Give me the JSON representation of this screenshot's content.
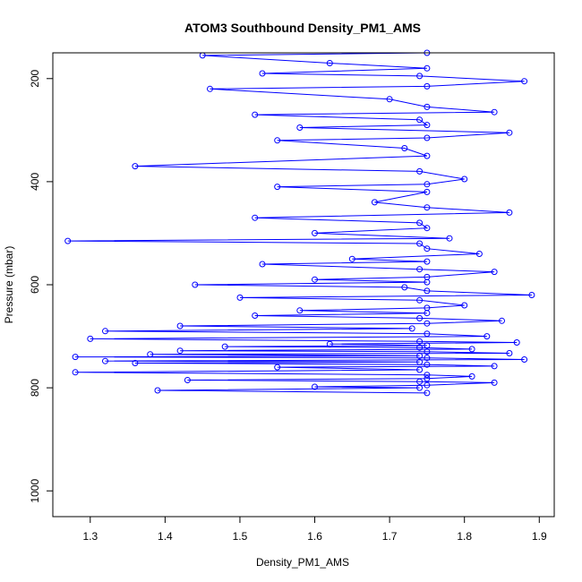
{
  "chart_data": {
    "type": "line",
    "title": "ATOM3 Southbound Density_PM1_AMS",
    "xlabel": "Density_PM1_AMS",
    "ylabel": "Pressure (mbar)",
    "xlim": [
      1.25,
      1.92
    ],
    "ylim": [
      1050,
      150
    ],
    "y_reversed": true,
    "x_ticks": [
      1.3,
      1.4,
      1.5,
      1.6,
      1.7,
      1.8,
      1.9
    ],
    "x_tick_labels": [
      "1.3",
      "1.4",
      "1.5",
      "1.6",
      "1.7",
      "1.8",
      "1.9"
    ],
    "y_ticks": [
      200,
      400,
      600,
      800,
      1000
    ],
    "y_tick_labels": [
      "200",
      "400",
      "600",
      "800",
      "1000"
    ],
    "grid": false,
    "legend": "none",
    "series": [
      {
        "color": "#0000ff",
        "marker": "open-circle",
        "x": [
          1.75,
          1.45,
          1.62,
          1.75,
          1.53,
          1.74,
          1.88,
          1.75,
          1.46,
          1.7,
          1.75,
          1.84,
          1.52,
          1.74,
          1.75,
          1.58,
          1.86,
          1.75,
          1.55,
          1.72,
          1.75,
          1.36,
          1.74,
          1.8,
          1.75,
          1.55,
          1.75,
          1.68,
          1.75,
          1.86,
          1.52,
          1.74,
          1.75,
          1.6,
          1.78,
          1.27,
          1.74,
          1.75,
          1.82,
          1.65,
          1.75,
          1.53,
          1.74,
          1.84,
          1.75,
          1.6,
          1.75,
          1.44,
          1.72,
          1.75,
          1.89,
          1.5,
          1.74,
          1.8,
          1.75,
          1.58,
          1.75,
          1.52,
          1.74,
          1.85,
          1.75,
          1.42,
          1.73,
          1.32,
          1.75,
          1.83,
          1.3,
          1.74,
          1.87,
          1.62,
          1.75,
          1.48,
          1.74,
          1.81,
          1.42,
          1.75,
          1.86,
          1.38,
          1.74,
          1.28,
          1.75,
          1.88,
          1.32,
          1.74,
          1.36,
          1.75,
          1.84,
          1.55,
          1.74,
          1.28,
          1.75,
          1.81,
          1.75,
          1.43,
          1.74,
          1.84,
          1.75,
          1.6,
          1.74,
          1.39,
          1.75
        ],
        "y": [
          150,
          155,
          170,
          180,
          190,
          195,
          205,
          215,
          220,
          240,
          255,
          265,
          270,
          280,
          290,
          295,
          305,
          315,
          320,
          335,
          350,
          370,
          380,
          395,
          405,
          410,
          420,
          440,
          450,
          460,
          470,
          480,
          490,
          500,
          510,
          515,
          520,
          530,
          540,
          550,
          555,
          560,
          570,
          575,
          585,
          590,
          595,
          600,
          605,
          612,
          620,
          625,
          630,
          640,
          645,
          650,
          655,
          660,
          665,
          670,
          675,
          680,
          685,
          690,
          695,
          700,
          705,
          710,
          712,
          715,
          718,
          720,
          722,
          725,
          728,
          730,
          733,
          735,
          738,
          740,
          742,
          745,
          748,
          750,
          752,
          755,
          758,
          760,
          765,
          770,
          775,
          778,
          782,
          785,
          788,
          790,
          795,
          798,
          800,
          805,
          810
        ]
      }
    ]
  }
}
